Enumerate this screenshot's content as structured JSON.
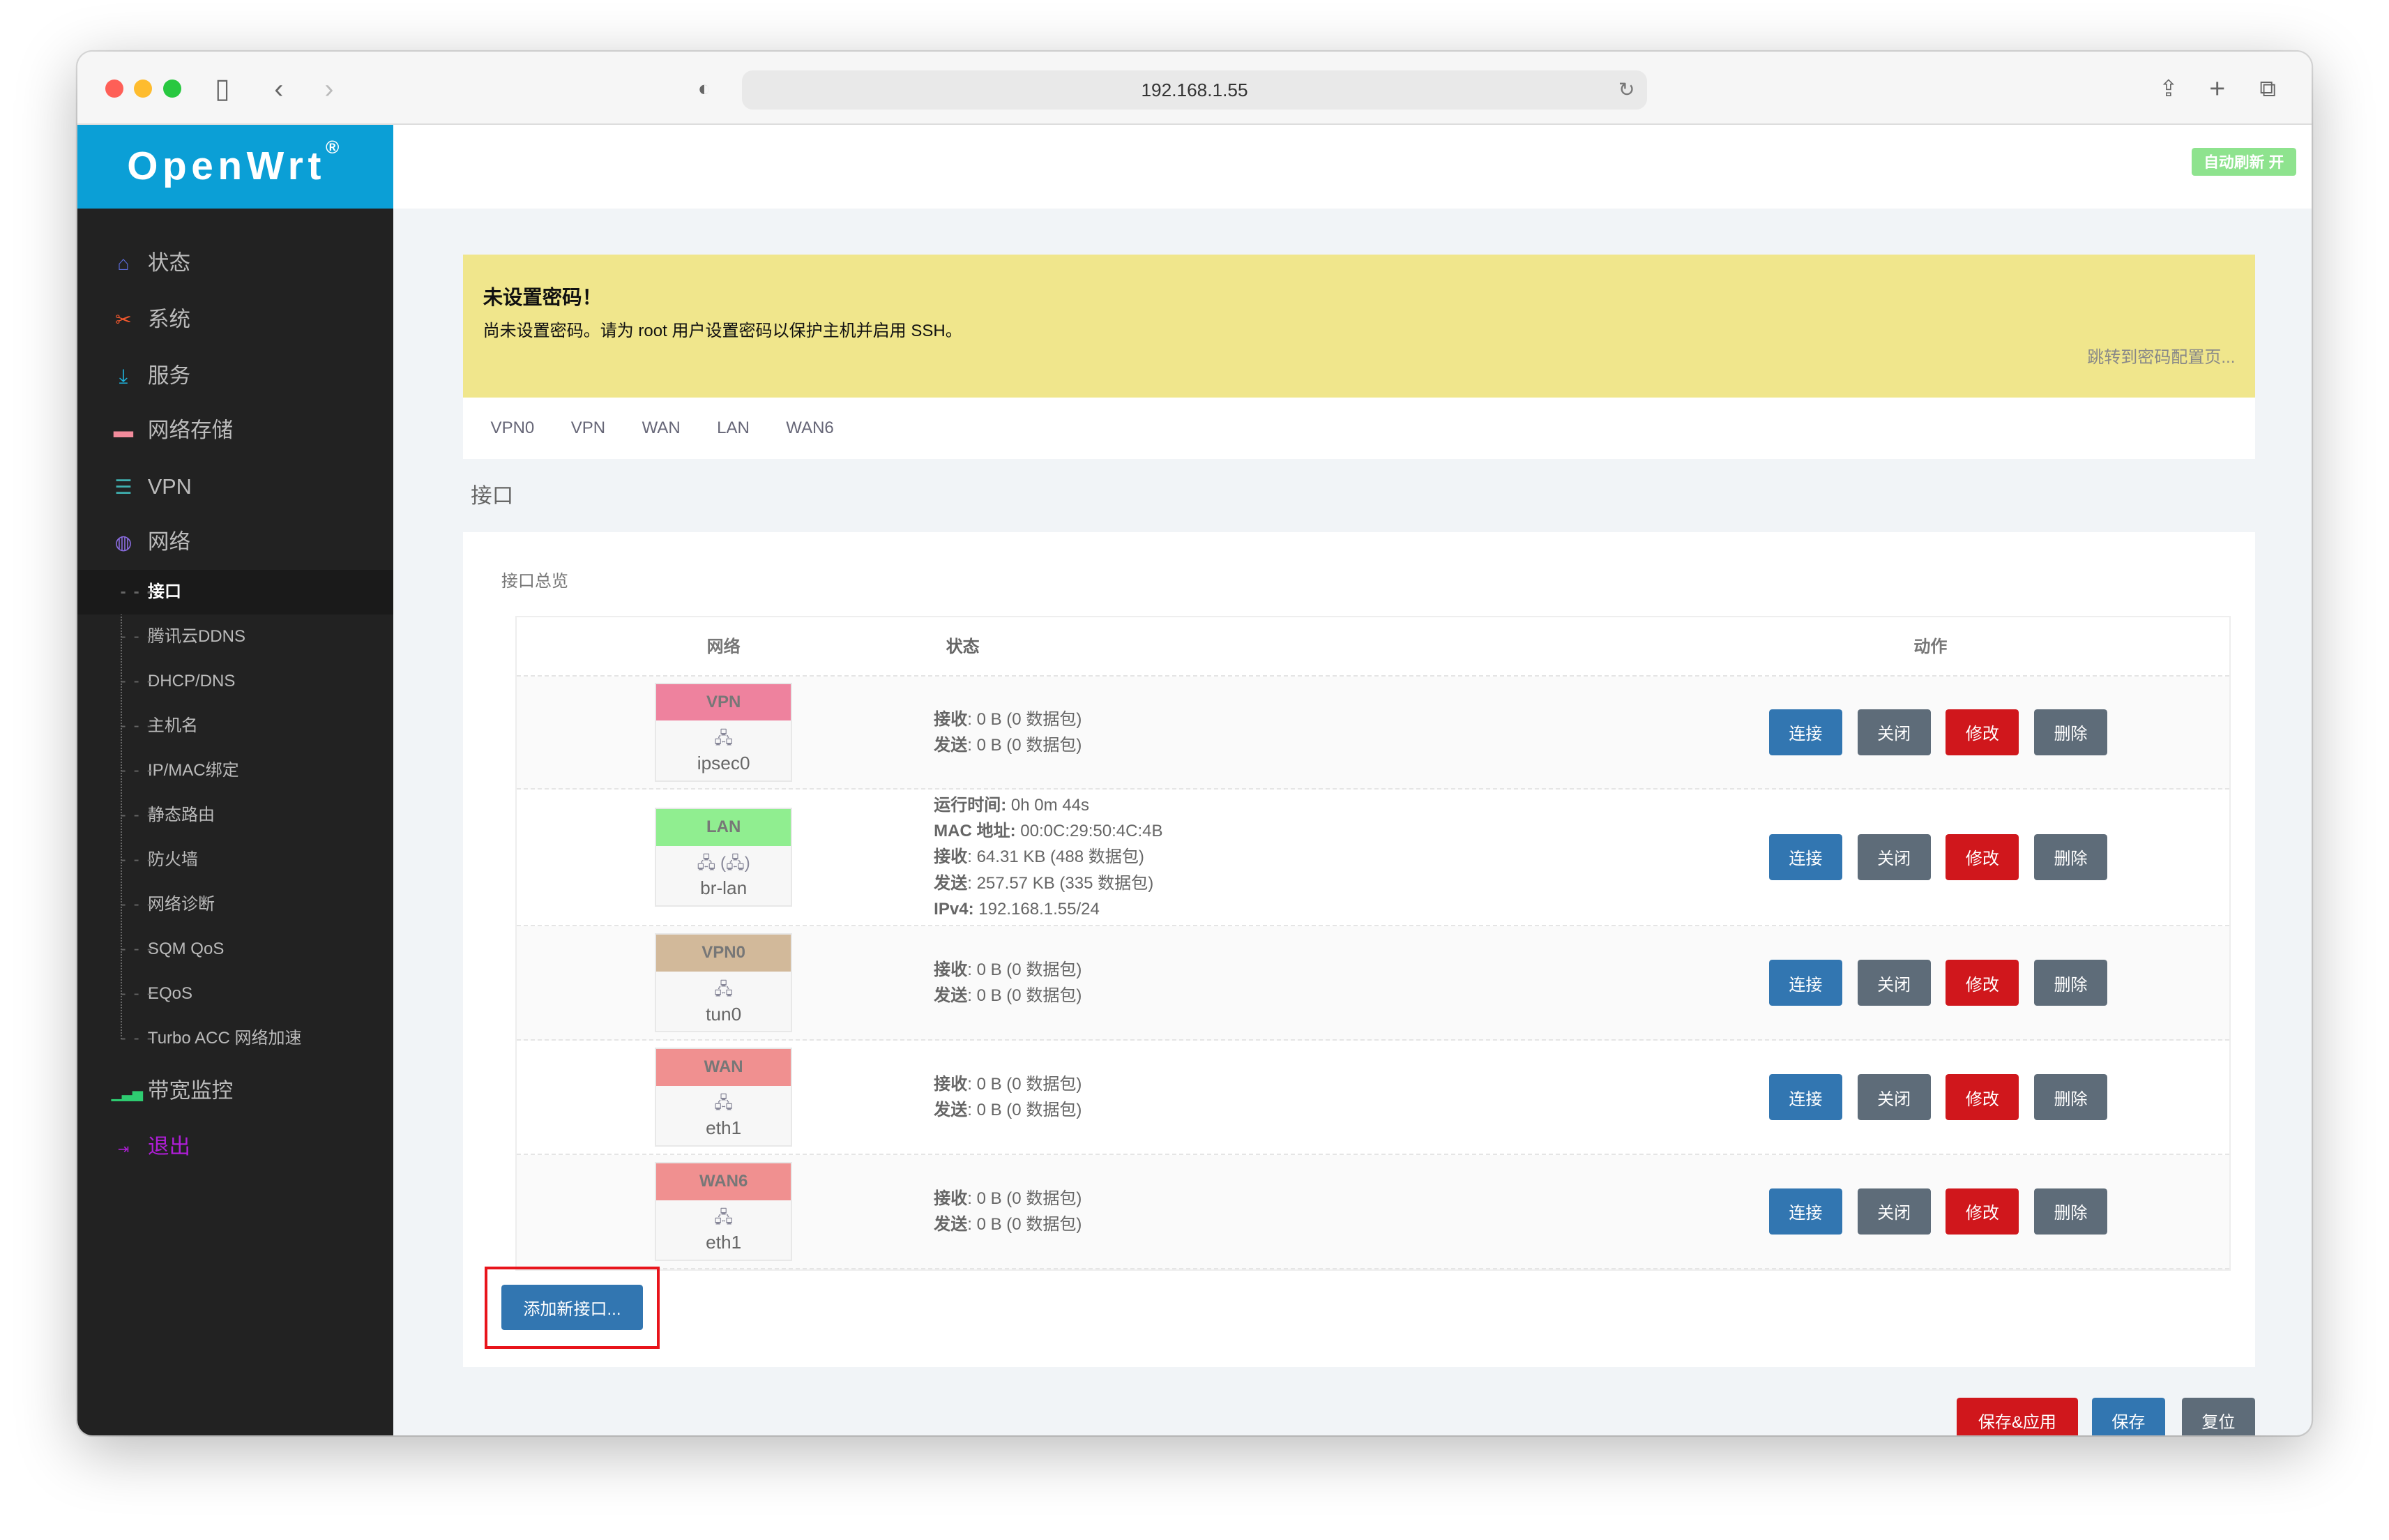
{
  "browser": {
    "url": "192.168.1.55"
  },
  "logo": {
    "text": "OpenWrt",
    "mark": "®"
  },
  "sidebar": {
    "items": [
      {
        "label": "状态",
        "icon": "home-icon",
        "color": "#5b6bd8"
      },
      {
        "label": "系统",
        "icon": "tools-icon",
        "color": "#f0572d"
      },
      {
        "label": "服务",
        "icon": "download-icon",
        "color": "#1fb6e0"
      },
      {
        "label": "网络存储",
        "icon": "disk-icon",
        "color": "#f28b9b"
      },
      {
        "label": "VPN",
        "icon": "list-icon",
        "color": "#3fb0b0"
      },
      {
        "label": "网络",
        "icon": "globe-icon",
        "color": "#8a6ce0"
      }
    ],
    "subitems": [
      "接口",
      "腾讯云DDNS",
      "DHCP/DNS",
      "主机名",
      "IP/MAC绑定",
      "静态路由",
      "防火墙",
      "网络诊断",
      "SQM QoS",
      "EQoS",
      "Turbo ACC 网络加速"
    ],
    "bottom": [
      {
        "label": "带宽监控",
        "icon": "bar-chart-icon",
        "color": "#2ecc71"
      },
      {
        "label": "退出",
        "icon": "logout-icon",
        "color": "#b01ed8"
      }
    ]
  },
  "header": {
    "auto_refresh": "自动刷新 开"
  },
  "alert": {
    "title": "未设置密码！",
    "message": "尚未设置密码。请为 root 用户设置密码以保护主机并启用 SSH。",
    "link": "跳转到密码配置页..."
  },
  "tabs": [
    "VPN0",
    "VPN",
    "WAN",
    "LAN",
    "WAN6"
  ],
  "page_title": "接口",
  "section_caption": "接口总览",
  "table": {
    "headers": [
      "网络",
      "状态",
      "动作"
    ],
    "rows": [
      {
        "name": "VPN",
        "color": "#ee829e",
        "device": "ipsec0",
        "icons": "🖧",
        "status": [
          [
            "接收",
            "0 B (0 数据包)"
          ],
          [
            "发送",
            "0 B (0 数据包)"
          ]
        ]
      },
      {
        "name": "LAN",
        "color": "#90ee90",
        "device": "br-lan",
        "icons": "🖧 (🖧)",
        "status": [
          [
            "运行时间:",
            "0h 0m 44s"
          ],
          [
            "MAC 地址:",
            "00:0C:29:50:4C:4B"
          ],
          [
            "接收",
            "64.31 KB (488 数据包)"
          ],
          [
            "发送",
            "257.57 KB (335 数据包)"
          ],
          [
            "IPv4:",
            "192.168.1.55/24"
          ]
        ]
      },
      {
        "name": "VPN0",
        "color": "#d2b99a",
        "device": "tun0",
        "icons": "🖧",
        "status": [
          [
            "接收",
            "0 B (0 数据包)"
          ],
          [
            "发送",
            "0 B (0 数据包)"
          ]
        ]
      },
      {
        "name": "WAN",
        "color": "#f09090",
        "device": "eth1",
        "icons": "🖧",
        "status": [
          [
            "接收",
            "0 B (0 数据包)"
          ],
          [
            "发送",
            "0 B (0 数据包)"
          ]
        ]
      },
      {
        "name": "WAN6",
        "color": "#f09090",
        "device": "eth1",
        "icons": "🖧",
        "status": [
          [
            "接收",
            "0 B (0 数据包)"
          ],
          [
            "发送",
            "0 B (0 数据包)"
          ]
        ]
      }
    ],
    "actions": [
      "连接",
      "关闭",
      "修改",
      "删除"
    ]
  },
  "add_button": "添加新接口...",
  "footer": {
    "save_apply": "保存&应用",
    "save": "保存",
    "reset": "复位"
  }
}
